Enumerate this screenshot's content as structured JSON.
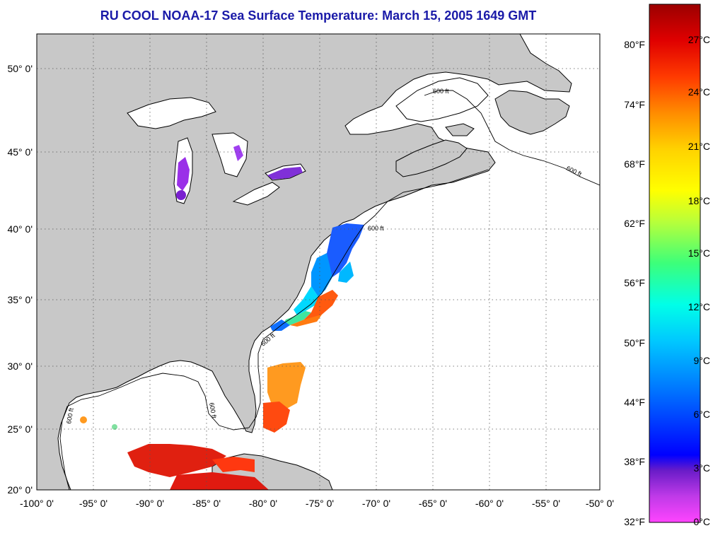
{
  "title": "RU COOL  NOAA-17  Sea Surface Temperature:  March 15, 2005 1649 GMT",
  "lat_ticks": [
    "50° 0'",
    "45° 0'",
    "40° 0'",
    "35° 0'",
    "30° 0'",
    "25° 0'",
    "20° 0'"
  ],
  "lon_ticks": [
    "-100° 0'",
    "-95° 0'",
    "-90° 0'",
    "-85° 0'",
    "-80° 0'",
    "-75° 0'",
    "-70° 0'",
    "-65° 0'",
    "-60° 0'",
    "-55° 0'",
    "-50° 0'"
  ],
  "isobath_label": "600 ft",
  "colorbar": {
    "fahrenheit": [
      "80°F",
      "74°F",
      "68°F",
      "62°F",
      "56°F",
      "50°F",
      "44°F",
      "38°F",
      "32°F"
    ],
    "celsius": [
      "27°C",
      "24°C",
      "21°C",
      "18°C",
      "15°C",
      "12°C",
      "9°C",
      "6°C",
      "3°C",
      "0°C"
    ],
    "colors": [
      "#9b0000",
      "#e00000",
      "#ff3a00",
      "#ff8c00",
      "#ffd200",
      "#ffff00",
      "#b8ff3a",
      "#3cff7a",
      "#00ffe8",
      "#00c8ff",
      "#0070ff",
      "#0000ff",
      "#6a1cc8",
      "#b02cf0",
      "#ff40ff"
    ],
    "land_color": "#c8c8c8"
  }
}
